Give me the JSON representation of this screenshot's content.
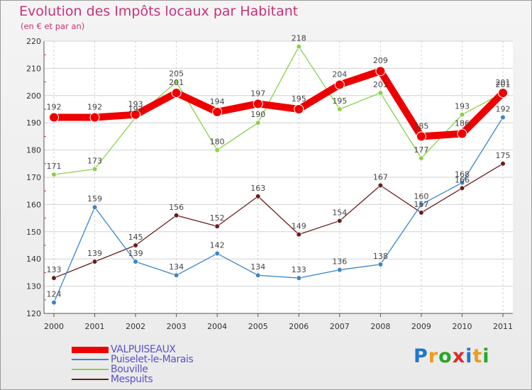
{
  "title": "Evolution des Impôts locaux par Habitant",
  "subtitle": "(en € et par an)",
  "logo": {
    "letters": [
      "P",
      "r",
      "o",
      "x",
      "i",
      "t",
      "i"
    ],
    "colors": [
      "#1f77d0",
      "#f29a1a",
      "#2aa52a",
      "#e02a2a",
      "#1f77d0",
      "#f29a1a",
      "#2aa52a"
    ]
  },
  "chart_data": {
    "type": "line",
    "title": "Evolution des Impôts locaux par Habitant",
    "subtitle": "(en € et par an)",
    "xlabel": "",
    "ylabel": "",
    "grid": true,
    "legend_position": "bottom-left",
    "categories": [
      "2000",
      "2001",
      "2002",
      "2003",
      "2004",
      "2005",
      "2006",
      "2007",
      "2008",
      "2009",
      "2010",
      "2011"
    ],
    "ylim": [
      120,
      220
    ],
    "yticks": [
      120,
      130,
      140,
      150,
      160,
      170,
      180,
      190,
      200,
      210,
      220
    ],
    "series": [
      {
        "name": "Mespuits",
        "color": "#6b1d1d",
        "style": "thin",
        "values": [
          133,
          139,
          145,
          156,
          152,
          163,
          149,
          154,
          167,
          157,
          166,
          175
        ],
        "labels": [
          "133",
          "139",
          "145",
          "156",
          "152",
          "163",
          "149",
          "154",
          "167",
          "157",
          "166",
          "175"
        ]
      },
      {
        "name": "Puiselet-le-Marais",
        "color": "#3a85c8",
        "style": "thin",
        "values": [
          124,
          159,
          139,
          134,
          142,
          134,
          133,
          136,
          138,
          160,
          168,
          192
        ],
        "labels": [
          "124",
          "159",
          "139",
          "134",
          "142",
          "134",
          "133",
          "136",
          "138",
          "160",
          "168",
          "192"
        ]
      },
      {
        "name": "Bouville",
        "color": "#8ad04a",
        "style": "thin",
        "values": [
          171,
          173,
          192,
          205,
          180,
          190,
          218,
          195,
          201,
          177,
          193,
          201
        ],
        "labels": [
          "171",
          "173",
          "192",
          "205",
          "180",
          "190",
          "218",
          "195",
          "201",
          "177",
          "193",
          "201"
        ]
      },
      {
        "name": "VALPUISEAUX",
        "color": "#ee0000",
        "style": "thick",
        "values": [
          192,
          192,
          193,
          201,
          194,
          197,
          195,
          204,
          209,
          185,
          186,
          201
        ],
        "labels": [
          "192",
          "192",
          "193",
          "201",
          "194",
          "197",
          "195",
          "204",
          "209",
          "185",
          "186",
          "201"
        ]
      }
    ]
  },
  "legend": [
    {
      "label": "VALPUISEAUX",
      "color": "#ee0000",
      "thickness": "thick"
    },
    {
      "label": "Puiselet-le-Marais",
      "color": "#3a85c8",
      "thickness": "thin"
    },
    {
      "label": "Bouville",
      "color": "#8ad04a",
      "thickness": "thin"
    },
    {
      "label": "Mespuits",
      "color": "#6b1d1d",
      "thickness": "thin"
    }
  ]
}
